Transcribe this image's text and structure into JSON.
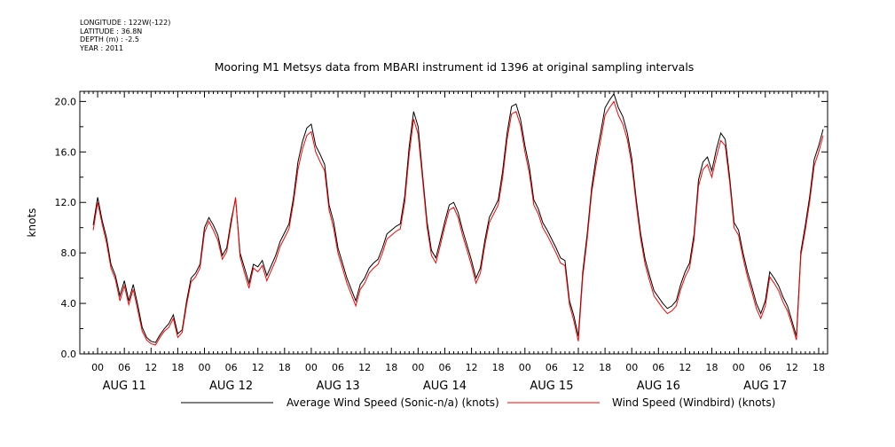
{
  "meta": {
    "longitude": "LONGITUDE : 122W(-122)",
    "latitude": "LATITUDE : 36.8N",
    "depth": "DEPTH (m) : -2.5",
    "year": "YEAR : 2011"
  },
  "chart_data": {
    "type": "line",
    "title": "Mooring M1 Metsys data from MBARI instrument id 1396 at original sampling intervals",
    "ylabel": "knots",
    "xlabel": "",
    "ylim": [
      0,
      20.8
    ],
    "xlim_hours": [
      -4,
      164
    ],
    "grid": false,
    "legend_position": "bottom",
    "y_ticks": [
      "0.0",
      "4.0",
      "8.0",
      "12.0",
      "16.0",
      "20.0"
    ],
    "x_hour_labels": [
      "00",
      "06",
      "12",
      "18"
    ],
    "x_day_labels": [
      "AUG 11",
      "AUG 12",
      "AUG 13",
      "AUG 14",
      "AUG 15",
      "AUG 16",
      "AUG 17"
    ],
    "series": [
      {
        "name": "Average Wind Speed (Sonic-n/a) (knots)",
        "color": "#000000",
        "x": [
          -1,
          0,
          1,
          2,
          3,
          4,
          5,
          6,
          7,
          8,
          9,
          10,
          11,
          12,
          13,
          14,
          15,
          16,
          17,
          18,
          19,
          20,
          21,
          22,
          23,
          24,
          25,
          26,
          27,
          28,
          29,
          30,
          31,
          32,
          33,
          34,
          35,
          36,
          37,
          38,
          39,
          40,
          41,
          42,
          43,
          44,
          45,
          46,
          47,
          48,
          49,
          50,
          51,
          52,
          53,
          54,
          55,
          56,
          57,
          58,
          59,
          60,
          61,
          62,
          63,
          64,
          65,
          66,
          67,
          68,
          69,
          70,
          71,
          72,
          73,
          74,
          75,
          76,
          77,
          78,
          79,
          80,
          81,
          82,
          83,
          84,
          85,
          86,
          87,
          88,
          89,
          90,
          91,
          92,
          93,
          94,
          95,
          96,
          97,
          98,
          99,
          100,
          101,
          102,
          103,
          104,
          105,
          106,
          107,
          108,
          109,
          110,
          111,
          112,
          113,
          114,
          115,
          116,
          117,
          118,
          119,
          120,
          121,
          122,
          123,
          124,
          125,
          126,
          127,
          128,
          129,
          130,
          131,
          132,
          133,
          134,
          135,
          136,
          137,
          138,
          139,
          140,
          141,
          142,
          143,
          144,
          145,
          146,
          147,
          148,
          149,
          150,
          151,
          152,
          153,
          154,
          155,
          156,
          157,
          158,
          159,
          160,
          161,
          162,
          163
        ],
        "values": [
          10.2,
          12.4,
          10.6,
          9.2,
          7.1,
          6.2,
          4.6,
          5.8,
          4.2,
          5.5,
          3.9,
          2.1,
          1.3,
          1.0,
          0.9,
          1.5,
          2.0,
          2.4,
          3.1,
          1.6,
          1.9,
          4.2,
          6.0,
          6.4,
          7.1,
          10.0,
          10.8,
          10.2,
          9.4,
          7.8,
          8.4,
          10.6,
          12.3,
          8.0,
          6.8,
          5.6,
          7.1,
          6.9,
          7.4,
          6.2,
          7.0,
          7.8,
          8.9,
          9.6,
          10.3,
          12.4,
          15.2,
          16.8,
          17.9,
          18.2,
          16.5,
          15.8,
          15.0,
          11.8,
          10.5,
          8.4,
          7.2,
          6.0,
          5.1,
          4.2,
          5.5,
          6.0,
          6.8,
          7.2,
          7.5,
          8.4,
          9.5,
          9.8,
          10.1,
          10.3,
          12.5,
          16.4,
          19.2,
          18.0,
          14.2,
          10.5,
          8.2,
          7.6,
          9.0,
          10.5,
          11.8,
          12.0,
          11.2,
          9.8,
          8.6,
          7.4,
          6.0,
          6.8,
          9.0,
          10.8,
          11.5,
          12.2,
          14.5,
          17.5,
          19.6,
          19.8,
          18.6,
          16.5,
          14.8,
          12.2,
          11.5,
          10.4,
          9.8,
          9.1,
          8.4,
          7.6,
          7.4,
          4.2,
          3.0,
          1.4,
          6.5,
          9.5,
          13.2,
          15.6,
          17.5,
          19.5,
          20.1,
          20.6,
          19.5,
          18.8,
          17.5,
          15.5,
          12.3,
          9.5,
          7.5,
          6.2,
          5.0,
          4.5,
          4.0,
          3.6,
          3.8,
          4.2,
          5.5,
          6.5,
          7.2,
          9.5,
          13.8,
          15.2,
          15.6,
          14.5,
          16.2,
          17.5,
          17.0,
          14.0,
          10.4,
          9.8,
          8.0,
          6.5,
          5.3,
          4.0,
          3.2,
          4.2,
          6.5,
          6.0,
          5.4,
          4.5,
          3.8,
          2.6,
          1.4,
          8.1,
          10.2,
          12.5,
          15.4,
          16.5,
          17.8
        ]
      },
      {
        "name": "Wind Speed (Windbird) (knots)",
        "color": "#ff0000",
        "x": [
          -1,
          0,
          1,
          2,
          3,
          4,
          5,
          6,
          7,
          8,
          9,
          10,
          11,
          12,
          13,
          14,
          15,
          16,
          17,
          18,
          19,
          20,
          21,
          22,
          23,
          24,
          25,
          26,
          27,
          28,
          29,
          30,
          31,
          32,
          33,
          34,
          35,
          36,
          37,
          38,
          39,
          40,
          41,
          42,
          43,
          44,
          45,
          46,
          47,
          48,
          49,
          50,
          51,
          52,
          53,
          54,
          55,
          56,
          57,
          58,
          59,
          60,
          61,
          62,
          63,
          64,
          65,
          66,
          67,
          68,
          69,
          70,
          71,
          72,
          73,
          74,
          75,
          76,
          77,
          78,
          79,
          80,
          81,
          82,
          83,
          84,
          85,
          86,
          87,
          88,
          89,
          90,
          91,
          92,
          93,
          94,
          95,
          96,
          97,
          98,
          99,
          100,
          101,
          102,
          103,
          104,
          105,
          106,
          107,
          108,
          109,
          110,
          111,
          112,
          113,
          114,
          115,
          116,
          117,
          118,
          119,
          120,
          121,
          122,
          123,
          124,
          125,
          126,
          127,
          128,
          129,
          130,
          131,
          132,
          133,
          134,
          135,
          136,
          137,
          138,
          139,
          140,
          141,
          142,
          143,
          144,
          145,
          146,
          147,
          148,
          149,
          150,
          151,
          152,
          153,
          154,
          155,
          156,
          157,
          158,
          159,
          160,
          161,
          162,
          163
        ],
        "values": [
          9.8,
          12.0,
          10.3,
          8.8,
          6.8,
          5.9,
          4.2,
          5.4,
          3.9,
          5.1,
          3.5,
          1.8,
          1.1,
          0.8,
          0.7,
          1.3,
          1.8,
          2.1,
          2.8,
          1.3,
          1.7,
          3.9,
          5.7,
          6.1,
          6.8,
          9.6,
          10.5,
          9.8,
          9.0,
          7.5,
          8.1,
          10.3,
          12.4,
          7.7,
          6.4,
          5.2,
          6.8,
          6.5,
          7.0,
          5.8,
          6.6,
          7.4,
          8.5,
          9.2,
          9.9,
          12.0,
          14.6,
          16.2,
          17.3,
          17.6,
          16.0,
          15.2,
          14.5,
          11.4,
          10.0,
          8.0,
          6.8,
          5.6,
          4.7,
          3.8,
          5.1,
          5.6,
          6.4,
          6.8,
          7.1,
          8.0,
          9.1,
          9.4,
          9.7,
          9.9,
          12.0,
          15.8,
          18.6,
          17.4,
          13.8,
          10.1,
          7.8,
          7.2,
          8.6,
          10.1,
          11.4,
          11.6,
          10.8,
          9.4,
          8.2,
          7.0,
          5.6,
          6.4,
          8.6,
          10.4,
          11.1,
          11.8,
          14.0,
          17.0,
          19.0,
          19.2,
          18.1,
          16.0,
          14.3,
          11.8,
          11.1,
          10.0,
          9.4,
          8.7,
          8.0,
          7.2,
          7.0,
          3.9,
          2.6,
          1.0,
          6.1,
          9.1,
          12.8,
          15.0,
          16.9,
          18.9,
          19.5,
          20.0,
          18.9,
          18.2,
          17.0,
          15.0,
          11.9,
          9.1,
          7.1,
          5.8,
          4.6,
          4.1,
          3.6,
          3.2,
          3.4,
          3.8,
          5.1,
          6.1,
          6.8,
          9.1,
          13.3,
          14.6,
          15.0,
          14.0,
          15.6,
          16.9,
          16.5,
          13.6,
          10.0,
          9.4,
          7.6,
          6.1,
          4.9,
          3.6,
          2.8,
          3.8,
          6.1,
          5.6,
          5.0,
          4.1,
          3.4,
          2.3,
          1.1,
          7.8,
          9.8,
          12.1,
          14.9,
          16.0,
          17.3
        ]
      }
    ]
  }
}
